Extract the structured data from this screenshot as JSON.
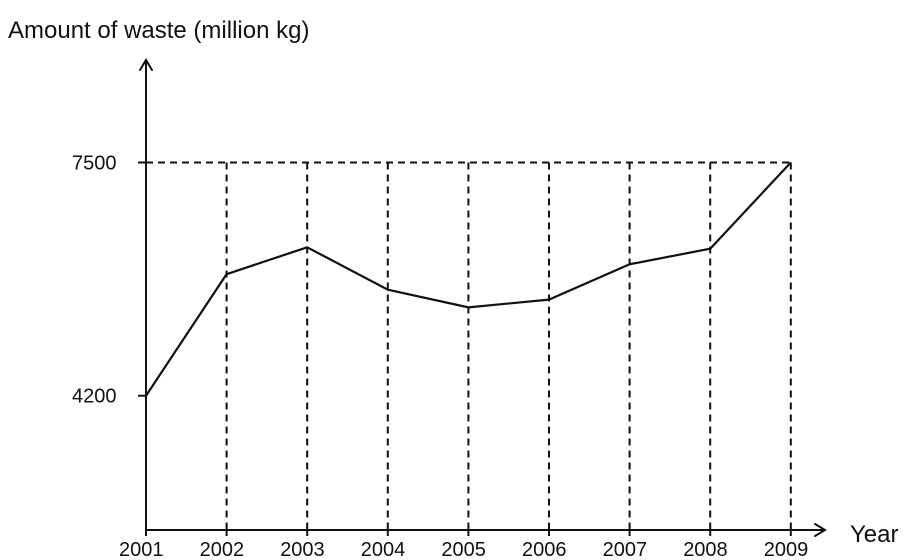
{
  "chart_data": {
    "type": "line",
    "y_axis_title": "Amount of waste (million kg)",
    "x_axis_title": "Year",
    "categories": [
      "2001",
      "2002",
      "2003",
      "2004",
      "2005",
      "2006",
      "2007",
      "2008",
      "2009"
    ],
    "values": [
      4200,
      5920,
      6300,
      5700,
      5450,
      5560,
      6060,
      6280,
      7500
    ],
    "y_ticks": [
      4200,
      7500
    ],
    "y_tick_labels": [
      "4200",
      "7500"
    ],
    "ylim": [
      2300,
      8950
    ],
    "guide_lines": "dashed",
    "grid": false
  }
}
